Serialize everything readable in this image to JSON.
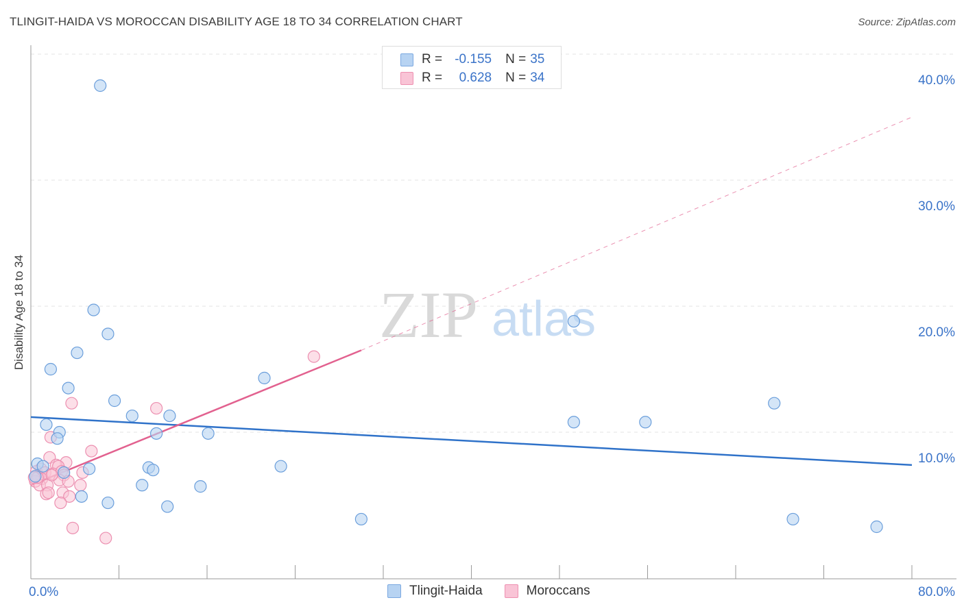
{
  "header": {
    "title": "TLINGIT-HAIDA VS MOROCCAN DISABILITY AGE 18 TO 34 CORRELATION CHART",
    "source": "Source: ZipAtlas.com"
  },
  "watermark": {
    "zip": "ZIP",
    "atlas": "atlas"
  },
  "legend": {
    "rows": [
      {
        "r_label": "R =",
        "r_value": "-0.155",
        "n_label": "N =",
        "n_value": "35"
      },
      {
        "r_label": "R =",
        "r_value": "0.628",
        "n_label": "N =",
        "n_value": "34"
      }
    ]
  },
  "bottom_legend": {
    "series_1": "Tlingit-Haida",
    "series_2": "Moroccans"
  },
  "colors": {
    "tlingit_fill": "#b7d3f2",
    "tlingit_stroke": "#6a9edb",
    "tlingit_line": "#2f72c9",
    "moroccan_fill": "#f9c4d6",
    "moroccan_stroke": "#ec8fb0",
    "moroccan_line": "#e2618f",
    "tick_label": "#3a73c8",
    "grid": "#e3e3e3"
  },
  "chart_data": {
    "type": "scatter",
    "title": "TLINGIT-HAIDA VS MOROCCAN DISABILITY AGE 18 TO 34 CORRELATION CHART",
    "xlabel": "",
    "ylabel": "Disability Age 18 to 34",
    "xlim": [
      0,
      80
    ],
    "ylim": [
      0,
      40
    ],
    "x_tick_labels": [
      "0.0%",
      "80.0%"
    ],
    "y_ticks": [
      10,
      20,
      30,
      40
    ],
    "y_tick_labels": [
      "10.0%",
      "20.0%",
      "30.0%",
      "40.0%"
    ],
    "grid": true,
    "legend_position": "top-center",
    "series": [
      {
        "name": "Tlingit-Haida",
        "r": -0.155,
        "n": 35,
        "points": [
          [
            6.3,
            37.5
          ],
          [
            5.7,
            19.7
          ],
          [
            7.0,
            17.8
          ],
          [
            4.2,
            16.3
          ],
          [
            1.8,
            15.0
          ],
          [
            3.4,
            13.5
          ],
          [
            7.6,
            12.5
          ],
          [
            9.2,
            11.3
          ],
          [
            12.6,
            11.3
          ],
          [
            1.4,
            10.6
          ],
          [
            2.6,
            10.0
          ],
          [
            2.4,
            9.5
          ],
          [
            11.4,
            9.9
          ],
          [
            16.1,
            9.9
          ],
          [
            0.6,
            7.5
          ],
          [
            1.1,
            7.3
          ],
          [
            5.3,
            7.1
          ],
          [
            10.7,
            7.2
          ],
          [
            11.1,
            7.0
          ],
          [
            3.0,
            6.8
          ],
          [
            22.7,
            7.3
          ],
          [
            10.1,
            5.8
          ],
          [
            15.4,
            5.7
          ],
          [
            4.6,
            4.9
          ],
          [
            7.0,
            4.4
          ],
          [
            12.4,
            4.1
          ],
          [
            21.2,
            14.3
          ],
          [
            30.0,
            3.1
          ],
          [
            49.3,
            10.8
          ],
          [
            55.8,
            10.8
          ],
          [
            49.3,
            18.8
          ],
          [
            67.5,
            12.3
          ],
          [
            69.2,
            3.1
          ],
          [
            76.8,
            2.5
          ],
          [
            0.4,
            6.5
          ]
        ],
        "trend": {
          "x0": 0,
          "y0": 11.2,
          "x1": 80,
          "y1": 7.4
        }
      },
      {
        "name": "Moroccans",
        "r": 0.628,
        "n": 34,
        "points": [
          [
            25.7,
            16.0
          ],
          [
            11.4,
            11.9
          ],
          [
            3.7,
            12.3
          ],
          [
            1.8,
            9.6
          ],
          [
            5.5,
            8.5
          ],
          [
            1.7,
            8.0
          ],
          [
            3.2,
            7.6
          ],
          [
            2.3,
            7.4
          ],
          [
            2.5,
            7.3
          ],
          [
            0.9,
            7.1
          ],
          [
            0.5,
            6.9
          ],
          [
            1.3,
            6.8
          ],
          [
            2.0,
            6.7
          ],
          [
            2.8,
            6.9
          ],
          [
            3.0,
            6.6
          ],
          [
            4.7,
            6.8
          ],
          [
            0.7,
            6.5
          ],
          [
            1.0,
            6.3
          ],
          [
            0.4,
            6.1
          ],
          [
            2.6,
            6.2
          ],
          [
            3.4,
            6.1
          ],
          [
            0.8,
            5.8
          ],
          [
            1.5,
            5.8
          ],
          [
            4.5,
            5.8
          ],
          [
            1.4,
            5.1
          ],
          [
            1.6,
            5.2
          ],
          [
            2.9,
            5.2
          ],
          [
            3.5,
            4.9
          ],
          [
            2.7,
            4.4
          ],
          [
            3.8,
            2.4
          ],
          [
            6.8,
            1.6
          ],
          [
            0.6,
            6.4
          ],
          [
            1.9,
            6.6
          ],
          [
            0.3,
            6.4
          ]
        ],
        "trend": {
          "x0": 0,
          "y0": 5.8,
          "x1": 30,
          "y1": 16.5,
          "dashed_to_x": 80,
          "dashed_to_y": 35.0
        }
      }
    ]
  }
}
